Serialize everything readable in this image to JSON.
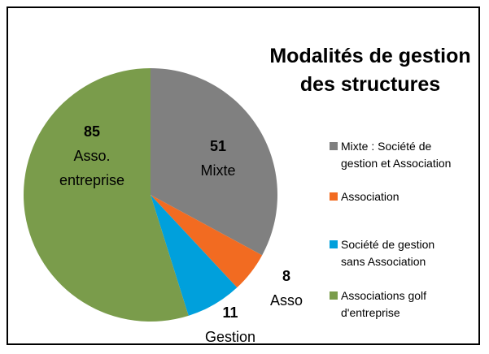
{
  "chart_data": {
    "type": "pie",
    "title": "Modalités de gestion des structures",
    "categories": [
      "Mixte : Société de gestion et Association",
      "Association",
      "Société de gestion sans Association",
      "Associations golf d'entreprise"
    ],
    "values": [
      51,
      8,
      11,
      85
    ],
    "data_labels": [
      "Mixte",
      "Asso",
      "Gestion",
      "Asso. entreprise"
    ],
    "colors": [
      "#808080",
      "#f26b21",
      "#00a0dc",
      "#7a9c4b"
    ],
    "legend": "right"
  }
}
